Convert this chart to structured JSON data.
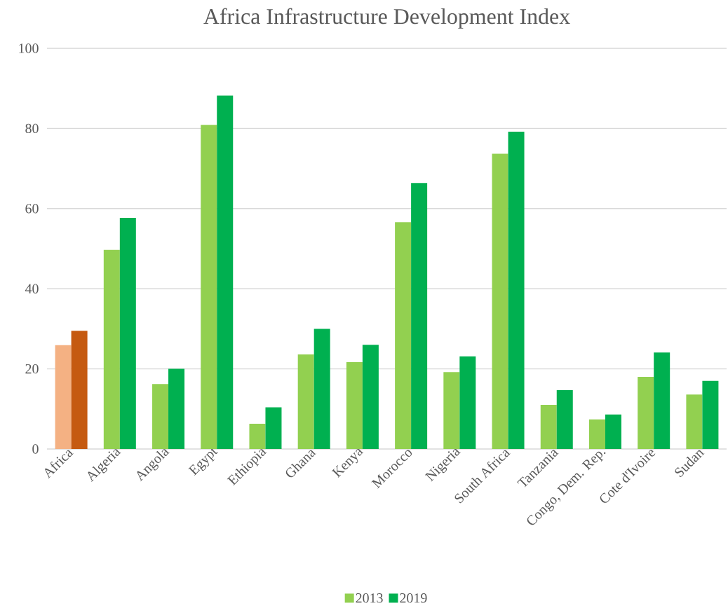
{
  "chart_data": {
    "type": "bar",
    "title": "Africa Infrastructure Development Index",
    "categories": [
      "Africa",
      "Algeria",
      "Angola",
      "Egypt",
      "Ethiopia",
      "Ghana",
      "Kenya",
      "Morocco",
      "Nigeria",
      "South Africa",
      "Tanzania",
      "Congo, Dem. Rep.",
      "Cote d'Ivoire",
      "Sudan"
    ],
    "series": [
      {
        "name": "2013",
        "color": "#92d050",
        "colors": [
          "#f4b183",
          "#92d050",
          "#92d050",
          "#92d050",
          "#92d050",
          "#92d050",
          "#92d050",
          "#92d050",
          "#92d050",
          "#92d050",
          "#92d050",
          "#92d050",
          "#92d050",
          "#92d050"
        ],
        "values": [
          25.9,
          49.7,
          16.2,
          80.9,
          6.3,
          23.6,
          21.7,
          56.6,
          19.2,
          73.7,
          11.0,
          7.4,
          18.0,
          13.6
        ]
      },
      {
        "name": "2019",
        "color": "#00b050",
        "colors": [
          "#c55a11",
          "#00b050",
          "#00b050",
          "#00b050",
          "#00b050",
          "#00b050",
          "#00b050",
          "#00b050",
          "#00b050",
          "#00b050",
          "#00b050",
          "#00b050",
          "#00b050",
          "#00b050"
        ],
        "values": [
          29.5,
          57.7,
          20.0,
          88.2,
          10.4,
          30.0,
          26.0,
          66.4,
          23.1,
          79.2,
          14.7,
          8.6,
          24.1,
          17.0
        ]
      }
    ],
    "ylim": [
      0,
      100
    ],
    "yticks": [
      0,
      20,
      40,
      60,
      80,
      100
    ],
    "grid": "y",
    "legend": "bottom"
  }
}
